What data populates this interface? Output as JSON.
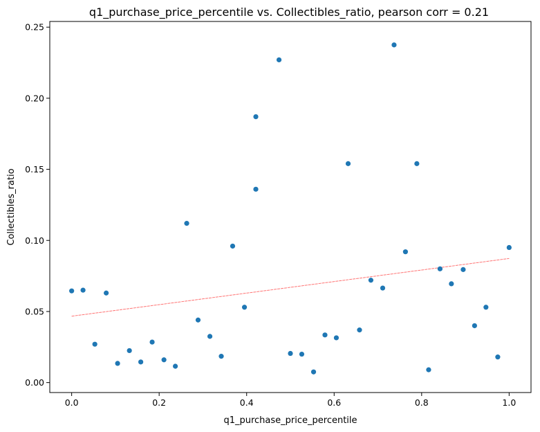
{
  "chart_data": {
    "type": "scatter",
    "title": "q1_purchase_price_percentile vs. Collectibles_ratio, pearson corr = 0.21",
    "xlabel": "q1_purchase_price_percentile",
    "ylabel": "Collectibles_ratio",
    "xlim": [
      -0.05,
      1.05
    ],
    "ylim": [
      -0.007,
      0.254
    ],
    "xticks": [
      0.0,
      0.2,
      0.4,
      0.6,
      0.8,
      1.0
    ],
    "xtick_labels": [
      "0.0",
      "0.2",
      "0.4",
      "0.6",
      "0.8",
      "1.0"
    ],
    "yticks": [
      0.0,
      0.05,
      0.1,
      0.15,
      0.2,
      0.25
    ],
    "ytick_labels": [
      "0.00",
      "0.05",
      "0.10",
      "0.15",
      "0.20",
      "0.25"
    ],
    "grid": false,
    "point_color": "#1f77b4",
    "trend_color": "#ff0000",
    "points": [
      {
        "x": 0.0,
        "y": 0.0645
      },
      {
        "x": 0.026,
        "y": 0.065
      },
      {
        "x": 0.053,
        "y": 0.027
      },
      {
        "x": 0.079,
        "y": 0.063
      },
      {
        "x": 0.105,
        "y": 0.0135
      },
      {
        "x": 0.132,
        "y": 0.0225
      },
      {
        "x": 0.158,
        "y": 0.0145
      },
      {
        "x": 0.184,
        "y": 0.0285
      },
      {
        "x": 0.211,
        "y": 0.016
      },
      {
        "x": 0.237,
        "y": 0.0115
      },
      {
        "x": 0.263,
        "y": 0.112
      },
      {
        "x": 0.289,
        "y": 0.044
      },
      {
        "x": 0.316,
        "y": 0.0325
      },
      {
        "x": 0.342,
        "y": 0.0185
      },
      {
        "x": 0.368,
        "y": 0.096
      },
      {
        "x": 0.395,
        "y": 0.053
      },
      {
        "x": 0.421,
        "y": 0.187
      },
      {
        "x": 0.421,
        "y": 0.136
      },
      {
        "x": 0.474,
        "y": 0.227
      },
      {
        "x": 0.5,
        "y": 0.0205
      },
      {
        "x": 0.526,
        "y": 0.02
      },
      {
        "x": 0.553,
        "y": 0.0075
      },
      {
        "x": 0.579,
        "y": 0.0335
      },
      {
        "x": 0.605,
        "y": 0.0315
      },
      {
        "x": 0.632,
        "y": 0.154
      },
      {
        "x": 0.658,
        "y": 0.037
      },
      {
        "x": 0.684,
        "y": 0.072
      },
      {
        "x": 0.711,
        "y": 0.0665
      },
      {
        "x": 0.737,
        "y": 0.2375
      },
      {
        "x": 0.763,
        "y": 0.092
      },
      {
        "x": 0.789,
        "y": 0.154
      },
      {
        "x": 0.816,
        "y": 0.009
      },
      {
        "x": 0.842,
        "y": 0.08
      },
      {
        "x": 0.868,
        "y": 0.0695
      },
      {
        "x": 0.895,
        "y": 0.0795
      },
      {
        "x": 0.921,
        "y": 0.04
      },
      {
        "x": 0.947,
        "y": 0.053
      },
      {
        "x": 0.974,
        "y": 0.018
      },
      {
        "x": 1.0,
        "y": 0.095
      }
    ],
    "trend_line": {
      "x": [
        0.0,
        1.0
      ],
      "y": [
        0.0467,
        0.0873
      ]
    }
  }
}
